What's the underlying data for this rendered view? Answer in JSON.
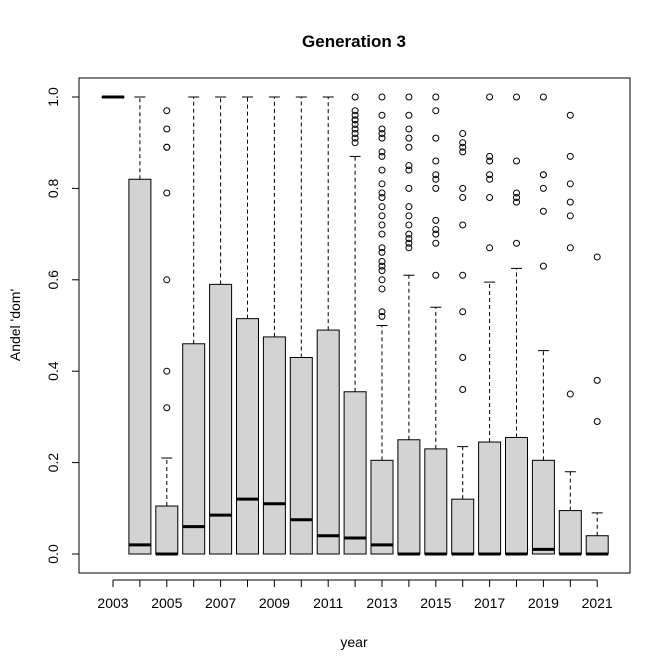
{
  "chart_data": {
    "type": "boxplot",
    "title": "Generation 3",
    "xlabel": "year",
    "ylabel": "Andel 'dom'",
    "ylim": [
      0,
      1
    ],
    "yticks": [
      "0.0",
      "0.2",
      "0.4",
      "0.6",
      "0.8",
      "1.0"
    ],
    "xtick_labels": [
      "2003",
      "2005",
      "2007",
      "2009",
      "2011",
      "2013",
      "2015",
      "2017",
      "2019",
      "2021"
    ],
    "box_color": "#d3d3d3",
    "boxes": [
      {
        "year": "2003",
        "q1": 1.0,
        "median": 1.0,
        "q3": 1.0,
        "whisker_low": 1.0,
        "whisker_high": 1.0,
        "outliers": []
      },
      {
        "year": "2004",
        "q1": 0.0,
        "median": 0.02,
        "q3": 0.82,
        "whisker_low": 0.0,
        "whisker_high": 1.0,
        "outliers": []
      },
      {
        "year": "2005",
        "q1": 0.0,
        "median": 0.0,
        "q3": 0.105,
        "whisker_low": 0.0,
        "whisker_high": 0.21,
        "outliers": [
          0.32,
          0.4,
          0.6,
          0.79,
          0.89,
          0.89,
          0.93,
          0.97
        ]
      },
      {
        "year": "2006",
        "q1": 0.0,
        "median": 0.06,
        "q3": 0.46,
        "whisker_low": 0.0,
        "whisker_high": 1.0,
        "outliers": []
      },
      {
        "year": "2007",
        "q1": 0.0,
        "median": 0.085,
        "q3": 0.59,
        "whisker_low": 0.0,
        "whisker_high": 1.0,
        "outliers": []
      },
      {
        "year": "2008",
        "q1": 0.0,
        "median": 0.12,
        "q3": 0.515,
        "whisker_low": 0.0,
        "whisker_high": 1.0,
        "outliers": []
      },
      {
        "year": "2009",
        "q1": 0.0,
        "median": 0.11,
        "q3": 0.475,
        "whisker_low": 0.0,
        "whisker_high": 1.0,
        "outliers": []
      },
      {
        "year": "2010",
        "q1": 0.0,
        "median": 0.075,
        "q3": 0.43,
        "whisker_low": 0.0,
        "whisker_high": 1.0,
        "outliers": []
      },
      {
        "year": "2011",
        "q1": 0.0,
        "median": 0.04,
        "q3": 0.49,
        "whisker_low": 0.0,
        "whisker_high": 1.0,
        "outliers": []
      },
      {
        "year": "2012",
        "q1": 0.0,
        "median": 0.035,
        "q3": 0.355,
        "whisker_low": 0.0,
        "whisker_high": 0.87,
        "outliers": [
          0.9,
          0.91,
          0.92,
          0.93,
          0.94,
          0.95,
          0.95,
          0.96,
          0.97,
          1.0
        ]
      },
      {
        "year": "2013",
        "q1": 0.0,
        "median": 0.02,
        "q3": 0.205,
        "whisker_low": 0.0,
        "whisker_high": 0.5,
        "outliers": [
          0.52,
          0.53,
          0.58,
          0.6,
          0.62,
          0.63,
          0.64,
          0.66,
          0.67,
          0.7,
          0.72,
          0.74,
          0.76,
          0.78,
          0.79,
          0.81,
          0.84,
          0.87,
          0.88,
          0.91,
          0.92,
          0.93,
          0.96,
          1.0
        ]
      },
      {
        "year": "2014",
        "q1": 0.0,
        "median": 0.0,
        "q3": 0.25,
        "whisker_low": 0.0,
        "whisker_high": 0.61,
        "outliers": [
          0.67,
          0.68,
          0.69,
          0.7,
          0.72,
          0.74,
          0.76,
          0.8,
          0.84,
          0.85,
          0.89,
          0.91,
          0.93,
          0.96,
          1.0
        ]
      },
      {
        "year": "2015",
        "q1": 0.0,
        "median": 0.0,
        "q3": 0.23,
        "whisker_low": 0.0,
        "whisker_high": 0.54,
        "outliers": [
          0.61,
          0.68,
          0.7,
          0.71,
          0.73,
          0.8,
          0.82,
          0.83,
          0.86,
          0.91,
          0.97,
          1.0
        ]
      },
      {
        "year": "2016",
        "q1": 0.0,
        "median": 0.0,
        "q3": 0.12,
        "whisker_low": 0.0,
        "whisker_high": 0.235,
        "outliers": [
          0.36,
          0.43,
          0.53,
          0.61,
          0.72,
          0.78,
          0.8,
          0.88,
          0.89,
          0.9,
          0.92
        ]
      },
      {
        "year": "2017",
        "q1": 0.0,
        "median": 0.0,
        "q3": 0.245,
        "whisker_low": 0.0,
        "whisker_high": 0.595,
        "outliers": [
          0.67,
          0.78,
          0.82,
          0.83,
          0.86,
          0.87,
          1.0
        ]
      },
      {
        "year": "2018",
        "q1": 0.0,
        "median": 0.0,
        "q3": 0.255,
        "whisker_low": 0.0,
        "whisker_high": 0.625,
        "outliers": [
          0.68,
          0.77,
          0.78,
          0.79,
          0.86,
          1.0
        ]
      },
      {
        "year": "2019",
        "q1": 0.0,
        "median": 0.01,
        "q3": 0.205,
        "whisker_low": 0.0,
        "whisker_high": 0.445,
        "outliers": [
          0.63,
          0.75,
          0.8,
          0.83,
          0.83,
          1.0
        ]
      },
      {
        "year": "2020",
        "q1": 0.0,
        "median": 0.0,
        "q3": 0.095,
        "whisker_low": 0.0,
        "whisker_high": 0.18,
        "outliers": [
          0.35,
          0.67,
          0.74,
          0.77,
          0.81,
          0.87,
          0.96
        ]
      },
      {
        "year": "2021",
        "q1": 0.0,
        "median": 0.0,
        "q3": 0.04,
        "whisker_low": 0.0,
        "whisker_high": 0.09,
        "outliers": [
          0.29,
          0.38,
          0.65
        ]
      }
    ]
  }
}
